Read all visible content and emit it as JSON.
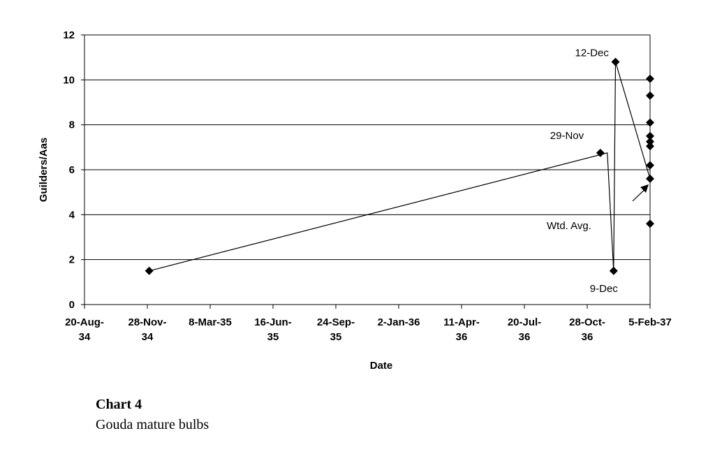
{
  "caption": {
    "title": "Chart 4",
    "subtitle": "Gouda mature bulbs"
  },
  "chart_data": {
    "type": "scatter",
    "xlabel": "Date",
    "ylabel": "Guilders/Aas",
    "xlim": [
      "1934-08-20",
      "1937-02-05"
    ],
    "ylim": [
      0,
      12
    ],
    "grid": "horizontal",
    "x_ticks": [
      {
        "date": "1934-08-20",
        "label": [
          "20-Aug-",
          "34"
        ]
      },
      {
        "date": "1934-11-28",
        "label": [
          "28-Nov-",
          "34"
        ]
      },
      {
        "date": "1935-03-08",
        "label": [
          "8-Mar-35"
        ]
      },
      {
        "date": "1935-06-16",
        "label": [
          "16-Jun-",
          "35"
        ]
      },
      {
        "date": "1935-09-24",
        "label": [
          "24-Sep-",
          "35"
        ]
      },
      {
        "date": "1936-01-02",
        "label": [
          "2-Jan-36"
        ]
      },
      {
        "date": "1936-04-11",
        "label": [
          "11-Apr-",
          "36"
        ]
      },
      {
        "date": "1936-07-20",
        "label": [
          "20-Jul-",
          "36"
        ]
      },
      {
        "date": "1936-10-28",
        "label": [
          "28-Oct-",
          "36"
        ]
      },
      {
        "date": "1937-02-05",
        "label": [
          "5-Feb-37"
        ]
      }
    ],
    "y_ticks": [
      0,
      2,
      4,
      6,
      8,
      10,
      12
    ],
    "series": [
      {
        "connected": true,
        "points": [
          {
            "x": "1934-12-01",
            "y": 1.5
          },
          {
            "x": "1936-11-29",
            "y": 6.75
          },
          {
            "x": "1936-12-09",
            "y": 1.5
          },
          {
            "x": "1936-12-12",
            "y": 10.8
          },
          {
            "x": "1937-02-05",
            "y": 5.6
          }
        ]
      },
      {
        "connected": false,
        "points": [
          {
            "x": "1937-02-05",
            "y": 10.05
          },
          {
            "x": "1937-02-05",
            "y": 9.3
          },
          {
            "x": "1937-02-05",
            "y": 8.1
          },
          {
            "x": "1937-02-05",
            "y": 7.5
          },
          {
            "x": "1937-02-05",
            "y": 7.25
          },
          {
            "x": "1937-02-05",
            "y": 7.05
          },
          {
            "x": "1937-02-05",
            "y": 6.2
          },
          {
            "x": "1937-02-05",
            "y": 3.6
          }
        ]
      }
    ],
    "annotations": [
      {
        "text": "29-Nov",
        "x": "1936-11-29",
        "y": 6.75
      },
      {
        "text": "9-Dec",
        "x": "1936-12-09",
        "y": 1.5
      },
      {
        "text": "12-Dec",
        "x": "1936-12-12",
        "y": 10.8
      },
      {
        "text": "Wtd. Avg.",
        "x": "1937-02-05",
        "y": 5.6
      }
    ]
  }
}
